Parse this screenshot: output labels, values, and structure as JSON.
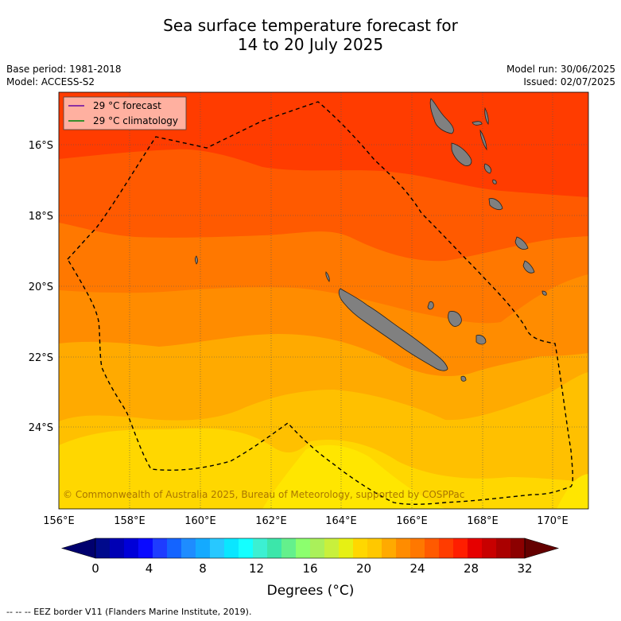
{
  "title": {
    "line1": "Sea surface temperature forecast for",
    "line2": "14 to 20 July 2025"
  },
  "meta": {
    "base_period": "Base period: 1981-2018",
    "model": "Model: ACCESS-S2",
    "model_run": "Model run: 30/06/2025",
    "issued": "Issued: 02/07/2025"
  },
  "legend": {
    "forecast": "29 °C  forecast",
    "climatology": "29 °C  climatology",
    "forecast_color": "#7b1fa2",
    "climatology_color": "#1b8a1b"
  },
  "map": {
    "lon_min": 156,
    "lon_max": 171,
    "lat_top": -14.5,
    "lat_bottom": -26.3,
    "lon_ticks": [
      "156°E",
      "158°E",
      "160°E",
      "162°E",
      "164°E",
      "166°E",
      "168°E",
      "170°E"
    ],
    "lat_ticks": [
      "16°S",
      "18°S",
      "20°S",
      "22°S",
      "24°S"
    ],
    "copyright": "© Commonwealth of Australia 2025, Bureau of Meteorology, supported by COSPPac",
    "land_color": "#808080"
  },
  "colorbar": {
    "label": "Degrees (°C)",
    "ticks": [
      "0",
      "4",
      "8",
      "12",
      "16",
      "20",
      "24",
      "28",
      "32"
    ],
    "colors": [
      "#000a8c",
      "#0000b4",
      "#0000d8",
      "#0a0aff",
      "#1e3cff",
      "#1464ff",
      "#1e8cff",
      "#14aaff",
      "#28c8ff",
      "#0ae6ff",
      "#14ffff",
      "#3cf0d2",
      "#3ce6aa",
      "#64f08c",
      "#8cff6e",
      "#aaf05a",
      "#c8f03c",
      "#e6f014",
      "#ffd700",
      "#ffc800",
      "#ffaa00",
      "#ff8c00",
      "#ff7800",
      "#ff5a00",
      "#ff3c00",
      "#ff1e00",
      "#e60000",
      "#c80000",
      "#aa0000",
      "#8c0000"
    ],
    "under_color": "#00006e",
    "over_color": "#640000"
  },
  "footer": "--  --  -- EEZ border V11 (Flanders Marine Institute, 2019)."
}
